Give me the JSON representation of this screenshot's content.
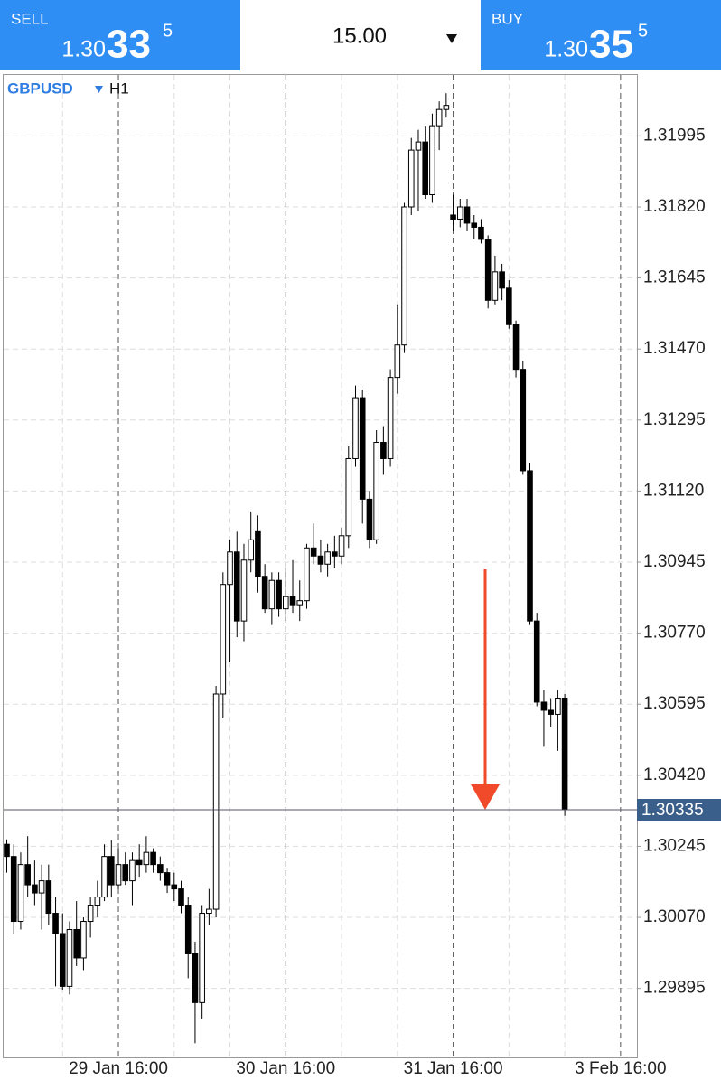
{
  "header": {
    "sell": {
      "label": "SELL",
      "price_prefix": "1.30",
      "price_main": "33",
      "price_sup": "5"
    },
    "volume": "15.00",
    "buy": {
      "label": "BUY",
      "price_prefix": "1.30",
      "price_main": "35",
      "price_sup": "5"
    }
  },
  "symbol": {
    "name": "GBPUSD",
    "timeframe": "H1"
  },
  "chart_data": {
    "type": "candlestick",
    "categories": [
      null,
      null,
      null,
      null,
      null,
      null,
      null,
      null,
      null,
      null,
      null,
      null,
      null,
      null,
      null,
      null,
      "29 Jan 16:00",
      null,
      null,
      null,
      null,
      null,
      null,
      null,
      null,
      null,
      null,
      null,
      null,
      null,
      null,
      null,
      null,
      null,
      null,
      null,
      null,
      null,
      null,
      null,
      "30 Jan 16:00",
      null,
      null,
      null,
      null,
      null,
      null,
      null,
      null,
      null,
      null,
      null,
      null,
      null,
      null,
      null,
      null,
      null,
      null,
      null,
      null,
      null,
      null,
      null,
      "31 Jan 16:00",
      null,
      null,
      null,
      null,
      null,
      null,
      null,
      null,
      null,
      null,
      null,
      null,
      null,
      null,
      null,
      null,
      null,
      null,
      null,
      null,
      null,
      null,
      null,
      "3 Feb 16:00"
    ],
    "open": [
      1.3025,
      1.3022,
      1.3006,
      1.302,
      1.3015,
      1.3013,
      1.3016,
      1.3008,
      1.3003,
      1.299,
      1.3004,
      1.2997,
      1.3006,
      1.301,
      1.3012,
      1.3022,
      1.3015,
      1.302,
      1.3016,
      1.3021,
      1.302,
      1.3023,
      1.302,
      1.3018,
      1.3015,
      1.3014,
      1.301,
      1.2998,
      1.2986,
      1.3008,
      1.3009,
      1.3062,
      1.3089,
      1.3097,
      1.308,
      1.3095,
      1.3102,
      1.3091,
      1.3083,
      1.309,
      1.3083,
      1.3086,
      1.3084,
      1.3085,
      1.3098,
      1.3096,
      1.3094,
      1.3097,
      1.3096,
      1.3101,
      1.312,
      1.3135,
      1.311,
      1.31,
      1.3124,
      1.312,
      1.314,
      1.3148,
      1.3182,
      1.3196,
      1.3198,
      1.3185,
      1.3202,
      1.3206,
      1.318,
      1.3179,
      1.3182,
      1.3178,
      1.3177,
      1.3174,
      1.3159,
      1.3166,
      1.3162,
      1.3153,
      1.3142,
      1.3117,
      1.308,
      1.306,
      1.3058,
      1.3057,
      1.3061,
      null,
      null,
      null,
      null,
      null,
      null,
      null,
      null
    ],
    "high": [
      1.30262,
      1.3025,
      1.3023,
      1.3027,
      1.3021,
      1.302,
      1.302,
      1.3012,
      1.3008,
      1.3006,
      1.3011,
      1.3007,
      1.3012,
      1.3016,
      1.3025,
      1.3026,
      1.3024,
      1.3023,
      1.3023,
      1.3025,
      1.3027,
      1.3024,
      1.3022,
      1.3019,
      1.3018,
      1.3016,
      1.3012,
      1.3001,
      1.301,
      1.3014,
      1.3064,
      1.3092,
      1.31,
      1.3102,
      1.3099,
      1.3107,
      1.3106,
      1.3094,
      1.3092,
      1.3092,
      1.3093,
      1.3095,
      1.309,
      1.3099,
      1.3104,
      1.31,
      1.3099,
      1.3101,
      1.3103,
      1.3123,
      1.3138,
      1.3137,
      1.3112,
      1.3127,
      1.3128,
      1.3142,
      1.3158,
      1.3183,
      1.3199,
      1.3201,
      1.3202,
      1.3205,
      1.3208,
      1.321,
      1.3185,
      1.3184,
      1.3184,
      1.318,
      1.3179,
      1.3175,
      1.317,
      1.3168,
      1.3164,
      1.3154,
      1.3144,
      1.3119,
      1.3082,
      1.3063,
      1.3061,
      1.3063,
      1.3062,
      null,
      null,
      null,
      null,
      null,
      null,
      null,
      null
    ],
    "low": [
      1.3018,
      1.3003,
      1.3004,
      1.3012,
      1.301,
      1.3004,
      1.3005,
      1.299,
      1.2989,
      1.2988,
      1.2995,
      1.2994,
      1.3002,
      1.3007,
      1.3011,
      1.3012,
      1.3014,
      1.3015,
      1.301,
      1.3017,
      1.3018,
      1.3018,
      1.3016,
      1.3013,
      1.3011,
      1.3008,
      1.2992,
      1.2976,
      1.2982,
      1.3005,
      1.3007,
      1.3056,
      1.307,
      1.3076,
      1.3075,
      1.3092,
      1.3087,
      1.3082,
      1.3079,
      1.3081,
      1.308,
      1.3082,
      1.308,
      1.3083,
      1.3094,
      1.3092,
      1.3091,
      1.3093,
      1.3094,
      1.3098,
      1.3118,
      1.3104,
      1.3098,
      1.3099,
      1.3116,
      1.3118,
      1.3136,
      1.3146,
      1.318,
      1.3181,
      1.3184,
      1.3183,
      1.3196,
      1.3204,
      1.3176,
      1.3177,
      1.3176,
      1.3174,
      1.3173,
      1.3157,
      1.3158,
      1.3159,
      1.3152,
      1.314,
      1.3116,
      1.3079,
      1.3059,
      1.3049,
      1.3054,
      1.3048,
      1.3032,
      null,
      null,
      null,
      null,
      null,
      null,
      null,
      null
    ],
    "close": [
      1.3022,
      1.3006,
      1.302,
      1.3015,
      1.3013,
      1.3016,
      1.3008,
      1.3003,
      1.299,
      1.3004,
      1.2997,
      1.3006,
      1.301,
      1.3012,
      1.3022,
      1.3015,
      1.302,
      1.3016,
      1.3021,
      1.302,
      1.3023,
      1.302,
      1.3018,
      1.3015,
      1.3014,
      1.301,
      1.2998,
      1.2986,
      1.3008,
      1.3009,
      1.3062,
      1.3089,
      1.3097,
      1.308,
      1.3095,
      1.31,
      1.3091,
      1.3083,
      1.309,
      1.3083,
      1.3086,
      1.3084,
      1.3085,
      1.3098,
      1.3096,
      1.3094,
      1.3097,
      1.3096,
      1.3101,
      1.312,
      1.3135,
      1.311,
      1.31,
      1.3124,
      1.312,
      1.314,
      1.3148,
      1.3182,
      1.3196,
      1.3198,
      1.3185,
      1.3202,
      1.3206,
      1.3207,
      1.3179,
      1.3182,
      1.3178,
      1.3177,
      1.3174,
      1.3159,
      1.3166,
      1.3162,
      1.3153,
      1.3142,
      1.3117,
      1.308,
      1.306,
      1.3058,
      1.3057,
      1.3061,
      1.30335,
      null,
      null,
      null,
      null,
      null,
      null,
      null,
      null
    ],
    "up_color": "#ffffff",
    "down_color": "#000000",
    "ylim": [
      1.29725,
      1.32145
    ],
    "yticks": [
      1.29895,
      {
        "value": 1.3007,
        "label": "1.30070"
      },
      1.30245,
      {
        "value": 1.3042,
        "label": "1.30420"
      },
      1.30595,
      {
        "value": 1.3077,
        "label": "1.30770"
      },
      1.30945,
      {
        "value": 1.3112,
        "label": "1.31120"
      },
      1.31295,
      {
        "value": 1.3147,
        "label": "1.31470"
      },
      1.31645,
      {
        "value": 1.3182,
        "label": "1.31820"
      },
      1.31995
    ],
    "last_price": 1.30335,
    "grid": true
  }
}
